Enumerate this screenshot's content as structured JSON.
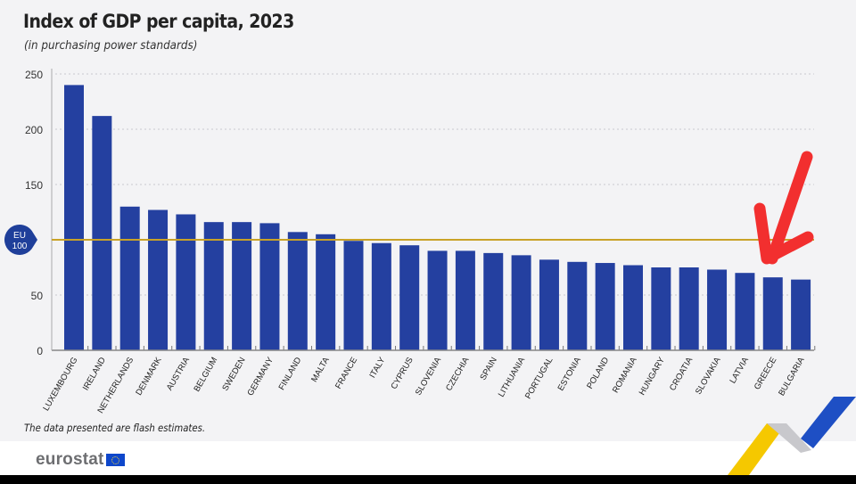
{
  "header": {
    "title": "Index of GDP per capita, 2023",
    "subtitle": "(in purchasing power standards)"
  },
  "footer": {
    "note": "The data presented are flash estimates.",
    "logo_text": "eurostat"
  },
  "reference_badge": {
    "line1": "EU",
    "line2": "100"
  },
  "colors": {
    "bar": "#2440a0",
    "reference_line": "#c9a227",
    "badge": "#1f3f9a",
    "annotation_arrow": "#f22f2f",
    "deco_yellow": "#f5c800",
    "deco_blue": "#1e4fc4"
  },
  "annotation": {
    "type": "arrow",
    "points_to": "GREECE"
  },
  "chart_data": {
    "type": "bar",
    "title": "Index of GDP per capita, 2023",
    "subtitle": "(in purchasing power standards)",
    "xlabel": "",
    "ylabel": "",
    "ylim": [
      0,
      250
    ],
    "yticks": [
      0,
      50,
      100,
      150,
      200,
      250
    ],
    "ytick_labels": [
      "0",
      "50",
      "",
      "150",
      "200",
      "250"
    ],
    "grid": true,
    "reference_line": {
      "value": 100,
      "label": "EU 100"
    },
    "categories": [
      "LUXEMBOURG",
      "IRELAND",
      "NETHERLANDS",
      "DENMARK",
      "AUSTRIA",
      "BELGIUM",
      "SWEDEN",
      "GERMANY",
      "FINLAND",
      "MALTA",
      "FRANCE",
      "ITALY",
      "CYPRUS",
      "SLOVENIA",
      "CZECHIA",
      "SPAIN",
      "LITHUANIA",
      "PORTUGAL",
      "ESTONIA",
      "POLAND",
      "ROMANIA",
      "HUNGARY",
      "CROATIA",
      "SLOVAKIA",
      "LATVIA",
      "GREECE",
      "BULGARIA"
    ],
    "values": [
      240,
      212,
      130,
      127,
      123,
      116,
      116,
      115,
      107,
      105,
      99,
      97,
      95,
      90,
      90,
      88,
      86,
      82,
      80,
      79,
      77,
      75,
      75,
      73,
      70,
      66,
      64
    ]
  }
}
